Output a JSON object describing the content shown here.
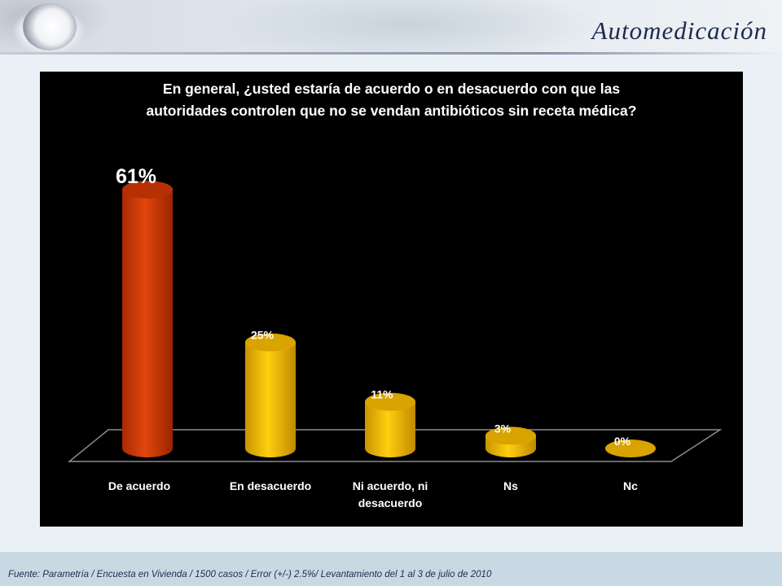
{
  "header": {
    "title": "Automedicación"
  },
  "chart_data": {
    "type": "bar",
    "style": "3d-cylinder",
    "title_lines": [
      "En general, ¿usted estaría de acuerdo o en desacuerdo con que las",
      "autoridades controlen que no se vendan antibióticos sin receta médica?"
    ],
    "categories": [
      "De acuerdo",
      "En desacuerdo",
      "Ni acuerdo, ni desacuerdo",
      "Ns",
      "Nc"
    ],
    "category_label_lines": [
      [
        "De acuerdo"
      ],
      [
        "En desacuerdo"
      ],
      [
        "Ni acuerdo, ni",
        "desacuerdo"
      ],
      [
        "Ns"
      ],
      [
        "Nc"
      ]
    ],
    "values": [
      61,
      25,
      11,
      3,
      0
    ],
    "data_labels": [
      "61%",
      "25%",
      "11%",
      "3%",
      "0%"
    ],
    "unit": "%",
    "colors": [
      "#d23a06",
      "#f2b800",
      "#f2b800",
      "#f2b800",
      "#f2b800"
    ],
    "highlight_index": 0,
    "xlabel": "",
    "ylabel": "",
    "ylim": [
      0,
      61
    ],
    "grid": false,
    "legend": "none",
    "background": "#000000"
  },
  "footer": {
    "source": "Fuente: Parametría / Encuesta en Vivienda / 1500 casos / Error (+/-) 2.5%/  Levantamiento del 1 al 3 de julio de 2010"
  }
}
